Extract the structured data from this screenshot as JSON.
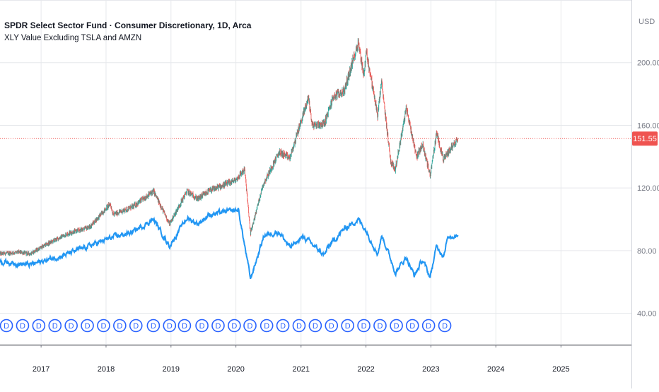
{
  "header": {
    "title": "SPDR Select Sector Fund · Consumer Discretionary, 1D, Arca",
    "indicator_label": "XLY Value Excluding TSLA and AMZN"
  },
  "chart_data": {
    "type": "line",
    "currency_label": "USD",
    "x_axis": {
      "range": [
        "2016-05-15",
        "2026-02-01"
      ],
      "tick_labels": [
        "2017",
        "2018",
        "2019",
        "2020",
        "2021",
        "2022",
        "2023",
        "2024",
        "2025"
      ],
      "tick_dates": [
        "2017-01-01",
        "2018-01-01",
        "2019-01-01",
        "2020-01-01",
        "2021-01-01",
        "2022-01-01",
        "2023-01-01",
        "2024-01-01",
        "2025-01-01"
      ]
    },
    "y_axis": {
      "range": [
        20,
        240
      ],
      "tick_labels": [
        "40.00",
        "80.00",
        "120.00",
        "160.00",
        "200.00"
      ],
      "tick_values": [
        40,
        80,
        120,
        160,
        200
      ]
    },
    "last_price": {
      "value": 151.55,
      "label": "151.55",
      "color": "#ef5350"
    },
    "series": [
      {
        "name": "SPDR Select Sector Fund · Consumer Discretionary",
        "style": "candlestick",
        "up_color": "#26a69a",
        "down_color": "#ef5350",
        "points": [
          [
            "2016-05-15",
            78
          ],
          [
            "2016-09-01",
            79
          ],
          [
            "2016-11-01",
            78
          ],
          [
            "2017-01-15",
            83
          ],
          [
            "2017-06-01",
            91
          ],
          [
            "2017-10-01",
            95
          ],
          [
            "2018-01-25",
            110
          ],
          [
            "2018-02-10",
            103
          ],
          [
            "2018-06-01",
            108
          ],
          [
            "2018-09-25",
            118
          ],
          [
            "2018-12-24",
            97
          ],
          [
            "2019-04-01",
            118
          ],
          [
            "2019-06-01",
            113
          ],
          [
            "2019-08-01",
            118
          ],
          [
            "2019-12-31",
            125
          ],
          [
            "2020-02-19",
            132
          ],
          [
            "2020-03-23",
            91
          ],
          [
            "2020-06-01",
            122
          ],
          [
            "2020-09-01",
            143
          ],
          [
            "2020-10-30",
            139
          ],
          [
            "2021-02-12",
            178
          ],
          [
            "2021-03-05",
            160
          ],
          [
            "2021-05-12",
            161
          ],
          [
            "2021-07-01",
            178
          ],
          [
            "2021-09-01",
            182
          ],
          [
            "2021-11-19",
            213
          ],
          [
            "2021-12-20",
            192
          ],
          [
            "2022-01-03",
            207
          ],
          [
            "2022-03-08",
            166
          ],
          [
            "2022-03-29",
            188
          ],
          [
            "2022-05-20",
            137
          ],
          [
            "2022-06-15",
            132
          ],
          [
            "2022-08-16",
            171
          ],
          [
            "2022-10-13",
            140
          ],
          [
            "2022-11-15",
            148
          ],
          [
            "2022-12-28",
            128
          ],
          [
            "2023-02-02",
            155
          ],
          [
            "2023-03-13",
            138
          ],
          [
            "2023-04-20",
            145
          ],
          [
            "2023-06-02",
            151.55
          ]
        ]
      },
      {
        "name": "XLY Value Excluding TSLA and AMZN",
        "style": "line",
        "color": "#2196f3",
        "points": [
          [
            "2016-05-15",
            73
          ],
          [
            "2016-11-01",
            71
          ],
          [
            "2017-06-01",
            78
          ],
          [
            "2018-01-25",
            88
          ],
          [
            "2018-06-01",
            92
          ],
          [
            "2018-09-25",
            100
          ],
          [
            "2018-12-24",
            83
          ],
          [
            "2019-04-01",
            101
          ],
          [
            "2019-06-01",
            97
          ],
          [
            "2019-08-01",
            103
          ],
          [
            "2020-01-15",
            106
          ],
          [
            "2020-03-23",
            62
          ],
          [
            "2020-06-08",
            90
          ],
          [
            "2020-09-01",
            92
          ],
          [
            "2020-10-30",
            82
          ],
          [
            "2021-01-15",
            89
          ],
          [
            "2021-05-12",
            77
          ],
          [
            "2021-06-01",
            82
          ],
          [
            "2021-09-01",
            94
          ],
          [
            "2021-11-19",
            100
          ],
          [
            "2022-01-01",
            93
          ],
          [
            "2022-03-08",
            78
          ],
          [
            "2022-04-01",
            90
          ],
          [
            "2022-06-16",
            66
          ],
          [
            "2022-08-16",
            76
          ],
          [
            "2022-09-30",
            64
          ],
          [
            "2022-11-15",
            74
          ],
          [
            "2022-12-28",
            63
          ],
          [
            "2023-02-02",
            83
          ],
          [
            "2023-03-13",
            77
          ],
          [
            "2023-04-01",
            87
          ],
          [
            "2023-06-02",
            91
          ]
        ]
      }
    ],
    "dividend_marker": {
      "label": "D",
      "color": "#2962ff",
      "dates": [
        "2016-06-20",
        "2016-09-19",
        "2016-12-19",
        "2017-03-20",
        "2017-06-19",
        "2017-09-18",
        "2017-12-18",
        "2018-03-19",
        "2018-06-18",
        "2018-09-24",
        "2018-12-24",
        "2019-03-18",
        "2019-06-24",
        "2019-09-23",
        "2019-12-23",
        "2020-03-20",
        "2020-06-22",
        "2020-09-21",
        "2020-12-21",
        "2021-03-22",
        "2021-06-21",
        "2021-09-20",
        "2021-12-20",
        "2022-03-21",
        "2022-06-21",
        "2022-09-19",
        "2022-12-19",
        "2023-03-20"
      ]
    }
  }
}
